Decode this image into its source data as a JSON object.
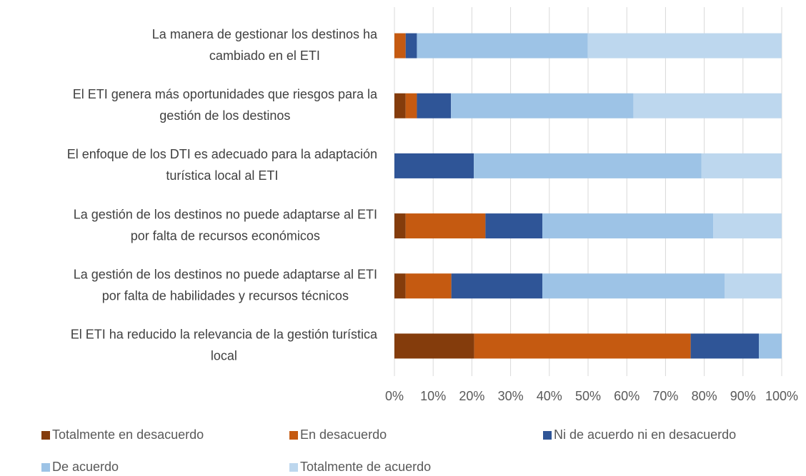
{
  "chart_data": {
    "type": "stacked-bar-horizontal",
    "categories": [
      [
        "La manera de gestionar los destinos ha",
        "cambiado en el ETI"
      ],
      [
        "El ETI genera más oportunidades que riesgos para la",
        "gestión de los destinos"
      ],
      [
        "El enfoque de los DTI es adecuado para la adaptación",
        "turística local al ETI"
      ],
      [
        "La gestión de los destinos no puede adaptarse al ETI",
        "por falta de recursos económicos"
      ],
      [
        "La gestión de los destinos no puede adaptarse al ETI",
        "por falta de habilidades y recursos técnicos"
      ],
      [
        "El ETI ha reducido la relevancia de la gestión turística",
        "local"
      ]
    ],
    "series": [
      {
        "name": "Totalmente en desacuerdo",
        "color": "#843c0c",
        "values": [
          0,
          2.9,
          0,
          2.9,
          2.9,
          20.6
        ]
      },
      {
        "name": "En desacuerdo",
        "color": "#c55a11",
        "values": [
          2.9,
          2.9,
          0,
          20.6,
          11.8,
          55.9
        ]
      },
      {
        "name": "Ni de acuerdo ni en desacuerdo",
        "color": "#2f5597",
        "values": [
          2.9,
          8.8,
          20.5,
          14.7,
          23.5,
          17.6
        ]
      },
      {
        "name": "De acuerdo",
        "color": "#9dc3e6",
        "values": [
          44.1,
          47.1,
          58.8,
          44.1,
          47.1,
          5.9
        ]
      },
      {
        "name": "Totalmente de acuerdo",
        "color": "#bdd7ee",
        "values": [
          50.1,
          38.3,
          20.7,
          17.7,
          14.7,
          0
        ]
      }
    ],
    "xlim": [
      0,
      100
    ],
    "xticks": [
      {
        "value": 0,
        "label": "0%"
      },
      {
        "value": 10,
        "label": "10%"
      },
      {
        "value": 20,
        "label": "20%"
      },
      {
        "value": 30,
        "label": "30%"
      },
      {
        "value": 40,
        "label": "40%"
      },
      {
        "value": 50,
        "label": "50%"
      },
      {
        "value": 60,
        "label": "60%"
      },
      {
        "value": 70,
        "label": "70%"
      },
      {
        "value": 80,
        "label": "80%"
      },
      {
        "value": 90,
        "label": "90%"
      },
      {
        "value": 100,
        "label": "100%"
      }
    ],
    "grid": true,
    "legend": "bottom"
  }
}
